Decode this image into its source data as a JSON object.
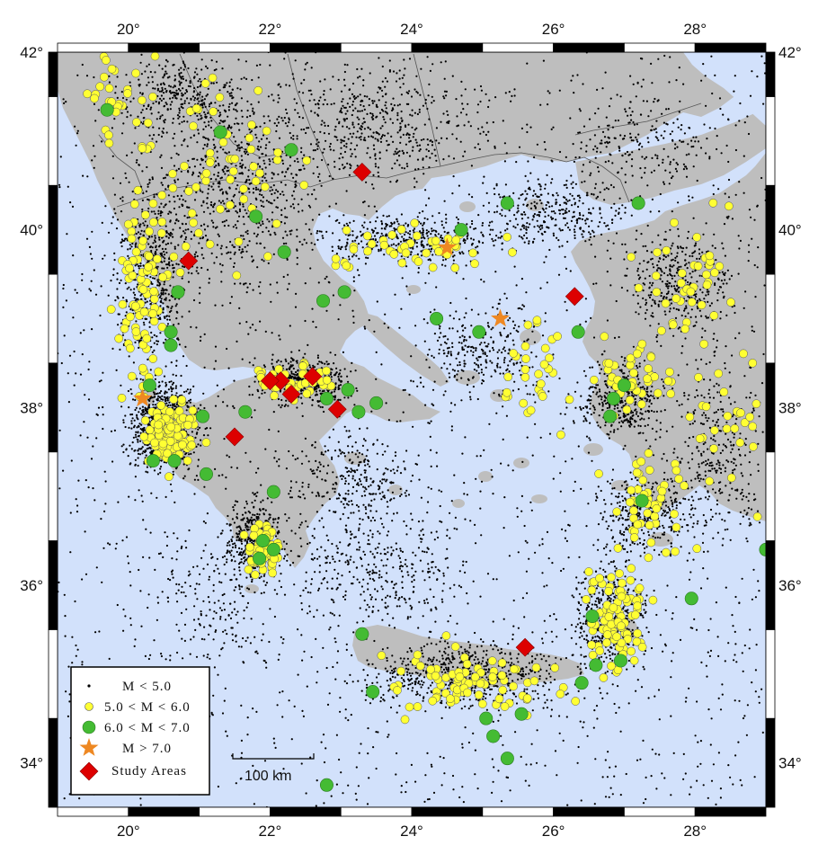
{
  "map": {
    "extent": {
      "lon": [
        19,
        29
      ],
      "lat": [
        33.5,
        42
      ]
    },
    "colors": {
      "sea": "#d2e1fb",
      "land": "#bebebe",
      "border": "#555555"
    }
  },
  "axes": {
    "lon_ticks": [
      {
        "value": 20,
        "label": "20°"
      },
      {
        "value": 22,
        "label": "22°"
      },
      {
        "value": 24,
        "label": "24°"
      },
      {
        "value": 26,
        "label": "26°"
      },
      {
        "value": 28,
        "label": "28°"
      }
    ],
    "lat_ticks": [
      {
        "value": 42,
        "label": "42°"
      },
      {
        "value": 40,
        "label": "40°"
      },
      {
        "value": 38,
        "label": "38°"
      },
      {
        "value": 36,
        "label": "36°"
      },
      {
        "value": 34,
        "label": "34°"
      }
    ]
  },
  "scale_bar": {
    "label": "100 km"
  },
  "legend": [
    {
      "key": "small",
      "label": "M < 5.0",
      "color": "#000000",
      "icon": "dot-icon"
    },
    {
      "key": "m5",
      "label": "5.0 < M < 6.0",
      "color": "#ffff33",
      "icon": "yellow-circle-icon"
    },
    {
      "key": "m6",
      "label": "6.0 < M < 7.0",
      "color": "#44bb33",
      "icon": "green-circle-icon"
    },
    {
      "key": "m7",
      "label": "M > 7.0",
      "color": "#ee8822",
      "icon": "star-icon"
    },
    {
      "key": "study",
      "label": "Study Areas",
      "color": "#dd0000",
      "icon": "diamond-icon"
    }
  ],
  "events": {
    "m7": [
      [
        20.2,
        38.1
      ],
      [
        24.5,
        39.8
      ],
      [
        25.25,
        39.0
      ]
    ],
    "study": [
      [
        23.3,
        40.65
      ],
      [
        20.85,
        39.65
      ],
      [
        22.15,
        38.3
      ],
      [
        22.0,
        38.3
      ],
      [
        22.3,
        38.15
      ],
      [
        22.6,
        38.35
      ],
      [
        22.95,
        37.98
      ],
      [
        21.5,
        37.67
      ],
      [
        26.3,
        39.25
      ],
      [
        25.6,
        35.3
      ]
    ],
    "m6": [
      [
        19.7,
        41.35
      ],
      [
        21.3,
        41.1
      ],
      [
        22.3,
        40.9
      ],
      [
        21.8,
        40.15
      ],
      [
        22.2,
        39.75
      ],
      [
        20.7,
        39.3
      ],
      [
        22.75,
        39.2
      ],
      [
        23.05,
        39.3
      ],
      [
        20.6,
        38.7
      ],
      [
        20.6,
        38.85
      ],
      [
        20.3,
        38.25
      ],
      [
        21.05,
        37.9
      ],
      [
        21.65,
        37.95
      ],
      [
        20.35,
        37.4
      ],
      [
        20.65,
        37.4
      ],
      [
        21.1,
        37.25
      ],
      [
        22.05,
        37.05
      ],
      [
        21.9,
        36.5
      ],
      [
        21.85,
        36.3
      ],
      [
        22.05,
        36.4
      ],
      [
        23.3,
        35.45
      ],
      [
        23.45,
        34.8
      ],
      [
        22.8,
        33.75
      ],
      [
        25.05,
        34.5
      ],
      [
        25.15,
        34.3
      ],
      [
        25.35,
        34.05
      ],
      [
        25.55,
        34.55
      ],
      [
        26.4,
        34.9
      ],
      [
        26.55,
        35.65
      ],
      [
        26.6,
        35.1
      ],
      [
        26.95,
        35.15
      ],
      [
        27.95,
        35.85
      ],
      [
        29.0,
        36.4
      ],
      [
        24.7,
        40.0
      ],
      [
        25.35,
        40.3
      ],
      [
        24.35,
        39.0
      ],
      [
        24.95,
        38.85
      ],
      [
        26.35,
        38.85
      ],
      [
        26.85,
        38.1
      ],
      [
        26.8,
        37.9
      ],
      [
        27.0,
        38.25
      ],
      [
        27.25,
        36.95
      ],
      [
        27.2,
        40.3
      ],
      [
        22.8,
        38.1
      ],
      [
        23.1,
        38.2
      ],
      [
        23.25,
        37.95
      ],
      [
        23.5,
        38.05
      ]
    ]
  }
}
